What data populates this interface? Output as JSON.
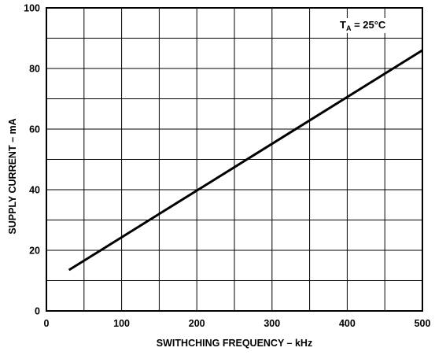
{
  "chart_data": {
    "type": "line",
    "title": "",
    "xlabel": "SWITHCHING FREQUENCY – kHz",
    "ylabel": "SUPPLY CURRENT – mA",
    "xlim": [
      0,
      500
    ],
    "ylim": [
      0,
      100
    ],
    "x_ticks": [
      0,
      100,
      200,
      300,
      400,
      500
    ],
    "x_tick_labels": [
      "0",
      "100",
      "200",
      "300",
      "400",
      "500"
    ],
    "y_ticks": [
      0,
      20,
      40,
      60,
      80,
      100
    ],
    "y_tick_labels": [
      "0",
      "20",
      "40",
      "60",
      "80",
      "100"
    ],
    "grid": true,
    "x_grid_step": 50,
    "y_grid_step": 10,
    "annotation": {
      "prefix": "T",
      "subscript": "A",
      "suffix": " = 25°C"
    },
    "series": [
      {
        "x": [
          30,
          500
        ],
        "y": [
          13.5,
          86
        ],
        "color": "#000000"
      }
    ]
  }
}
